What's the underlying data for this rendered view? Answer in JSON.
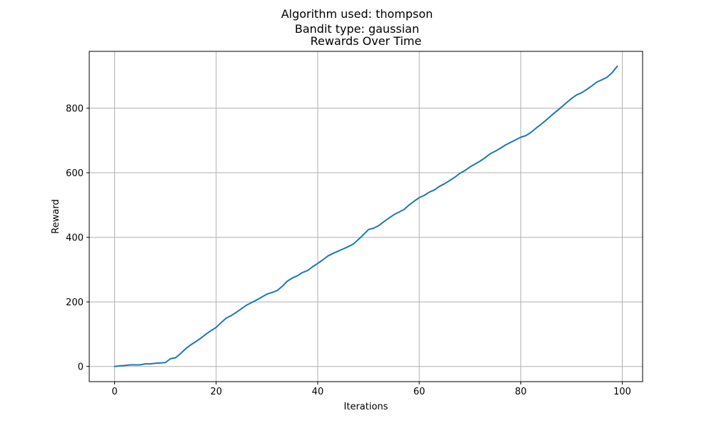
{
  "figure": {
    "suptitle_line1": "Algorithm used: thompson",
    "suptitle_line2": "Bandit type: gaussian"
  },
  "chart_data": {
    "type": "line",
    "title": "Rewards Over Time",
    "xlabel": "Iterations",
    "ylabel": "Reward",
    "xlim": [
      -5,
      104
    ],
    "ylim": [
      -47,
      976
    ],
    "xticks": [
      0,
      20,
      40,
      60,
      80,
      100
    ],
    "yticks": [
      0,
      200,
      400,
      600,
      800
    ],
    "grid": true,
    "line_color": "#1f77b4",
    "grid_color": "#b0b0b0",
    "series": [
      {
        "x": [
          0,
          1,
          2,
          3,
          4,
          5,
          6,
          7,
          8,
          9,
          10,
          11,
          12,
          13,
          14,
          15,
          16,
          17,
          18,
          19,
          20,
          21,
          22,
          23,
          24,
          25,
          26,
          27,
          28,
          29,
          30,
          31,
          32,
          33,
          34,
          35,
          36,
          37,
          38,
          39,
          40,
          41,
          42,
          43,
          44,
          45,
          46,
          47,
          48,
          49,
          50,
          51,
          52,
          53,
          54,
          55,
          56,
          57,
          58,
          59,
          60,
          61,
          62,
          63,
          64,
          65,
          66,
          67,
          68,
          69,
          70,
          71,
          72,
          73,
          74,
          75,
          76,
          77,
          78,
          79,
          80,
          81,
          82,
          83,
          84,
          85,
          86,
          87,
          88,
          89,
          90,
          91,
          92,
          93,
          94,
          95,
          96,
          97,
          98,
          99
        ],
        "y": [
          0,
          2,
          3,
          5,
          5,
          5,
          8,
          8,
          10,
          11,
          12,
          24,
          27,
          40,
          55,
          67,
          77,
          88,
          100,
          111,
          121,
          136,
          150,
          158,
          168,
          179,
          190,
          198,
          206,
          215,
          224,
          229,
          235,
          248,
          264,
          274,
          281,
          291,
          297,
          309,
          319,
          330,
          342,
          350,
          357,
          364,
          371,
          379,
          393,
          408,
          424,
          428,
          436,
          448,
          459,
          470,
          478,
          486,
          500,
          512,
          523,
          530,
          540,
          547,
          558,
          566,
          576,
          586,
          598,
          607,
          618,
          627,
          636,
          647,
          659,
          667,
          676,
          686,
          694,
          702,
          710,
          715,
          725,
          738,
          750,
          763,
          777,
          790,
          803,
          817,
          830,
          841,
          848,
          858,
          869,
          881,
          888,
          896,
          910,
          930
        ]
      }
    ]
  }
}
